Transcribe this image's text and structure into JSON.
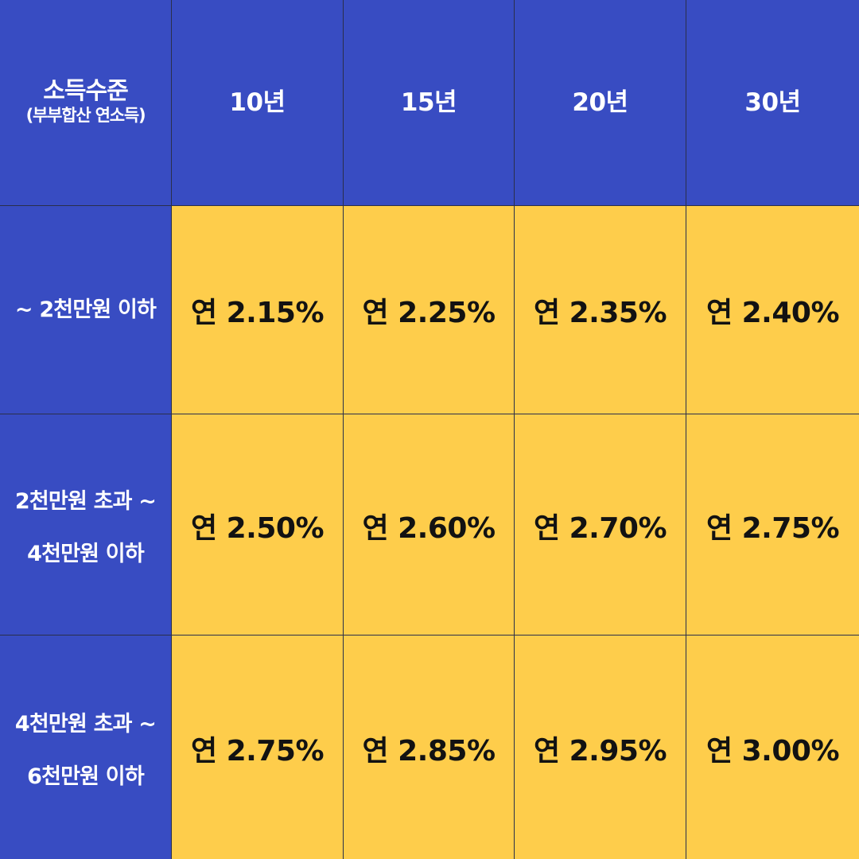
{
  "table": {
    "corner_label": "소득수준",
    "corner_sublabel": "(부부합산 연소득)",
    "columns": [
      "10년",
      "15년",
      "20년",
      "30년"
    ],
    "rows": [
      {
        "label_lines": [
          "~ 2천만원 이하"
        ],
        "rates": [
          "연 2.15%",
          "연 2.25%",
          "연 2.35%",
          "연 2.40%"
        ]
      },
      {
        "label_lines": [
          "2천만원 초과 ~",
          "4천만원 이하"
        ],
        "rates": [
          "연 2.50%",
          "연 2.60%",
          "연 2.70%",
          "연 2.75%"
        ]
      },
      {
        "label_lines": [
          "4천만원 초과 ~",
          "6천만원 이하"
        ],
        "rates": [
          "연 2.75%",
          "연 2.85%",
          "연 2.95%",
          "연 3.00%"
        ]
      }
    ]
  },
  "colors": {
    "header_background": "#384cc2",
    "rate_background": "#fecd4b",
    "header_text": "#ffffff",
    "rate_text": "#121212"
  }
}
